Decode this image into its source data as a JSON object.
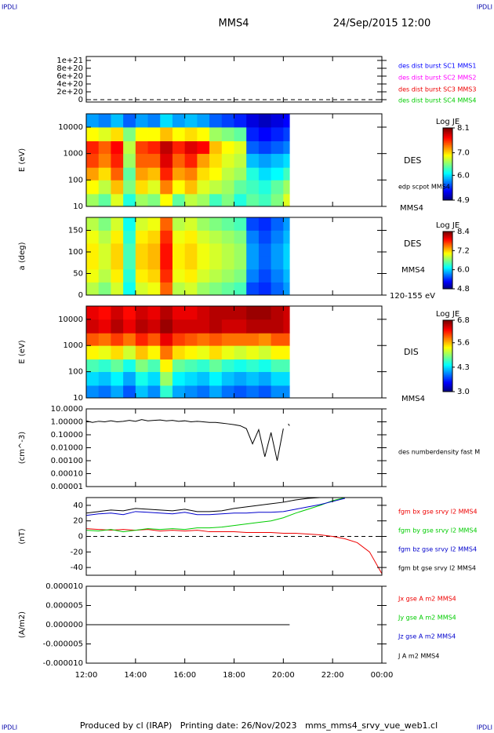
{
  "header": {
    "title": "MMS4",
    "date": "24/Sep/2015 12:00",
    "corners": [
      "IPDLI",
      "IPDLI",
      "IPDLI",
      "IPDLI"
    ]
  },
  "footer": "Produced by cl (IRAP)   Printing date: 26/Nov/2023   mms_mms4_srvy_vue_web1.cl",
  "time_axis": {
    "xlim": [
      12,
      24
    ],
    "xticks": [
      {
        "value": 12,
        "label": "12:00"
      },
      {
        "value": 14,
        "label": "14:00"
      },
      {
        "value": 16,
        "label": "16:00"
      },
      {
        "value": 18,
        "label": "18:00"
      },
      {
        "value": 20,
        "label": "20:00"
      },
      {
        "value": 22,
        "label": "22:00"
      },
      {
        "value": 24,
        "label": "00:00"
      }
    ]
  },
  "chart_data": [
    {
      "type": "line",
      "ylim": [
        -60000000000000000000,
        1100000000000000000000
      ],
      "yticks": [
        {
          "value": 0,
          "label": "0"
        },
        {
          "value": 200000000000000000000,
          "label": "2e+20"
        },
        {
          "value": 400000000000000000000,
          "label": "4e+20"
        },
        {
          "value": 600000000000000000000,
          "label": "6e+20"
        },
        {
          "value": 800000000000000000000,
          "label": "8e+20"
        },
        {
          "value": 1000000000000000000000,
          "label": "1e+21"
        }
      ],
      "zero_line": true,
      "x": [],
      "series": [],
      "legend": [
        {
          "name": "des dist burst SC1 MMS1",
          "color": "#0000ff"
        },
        {
          "name": "des dist burst SC2 MMS2",
          "color": "#ff00ff"
        },
        {
          "name": "des dist burst SC3 MMS3",
          "color": "#ee0000"
        },
        {
          "name": "des dist burst SC4 MMS4",
          "color": "#00cc00"
        }
      ]
    },
    {
      "type": "heatmap",
      "ylabel": "E (eV)",
      "log": true,
      "ylim": [
        10,
        32000
      ],
      "yticks": [
        10,
        100,
        1000,
        10000
      ],
      "xbins": [
        12,
        12.5,
        13,
        13.5,
        14,
        14.5,
        15,
        15.5,
        16,
        16.5,
        17,
        17.5,
        18,
        18.5,
        19,
        19.5,
        20,
        20.25
      ],
      "ybins": [
        10,
        30,
        100,
        300,
        1000,
        3000,
        10000,
        32000
      ],
      "z": [
        [
          6.6,
          6.4,
          6.8,
          6.2,
          6.6,
          6.5,
          6.9,
          6.4,
          6.7,
          6.6,
          6.3,
          6.5,
          6.2,
          6.4,
          6.3,
          6.5,
          6.8
        ],
        [
          6.9,
          6.7,
          7.1,
          6.5,
          7.0,
          6.8,
          7.3,
          6.9,
          7.1,
          6.8,
          6.7,
          6.6,
          6.4,
          6.3,
          6.2,
          6.4,
          6.6
        ],
        [
          7.2,
          7.0,
          7.4,
          6.4,
          7.2,
          7.1,
          7.6,
          7.2,
          7.3,
          7.0,
          6.9,
          6.7,
          6.6,
          6.2,
          6.0,
          6.1,
          6.3
        ],
        [
          7.5,
          7.3,
          7.6,
          6.6,
          7.4,
          7.4,
          7.8,
          7.4,
          7.6,
          7.2,
          7.0,
          6.8,
          6.7,
          5.9,
          5.8,
          5.9,
          6.0
        ],
        [
          7.6,
          7.4,
          7.7,
          6.7,
          7.5,
          7.6,
          7.9,
          7.6,
          7.8,
          7.7,
          7.1,
          6.9,
          6.8,
          5.6,
          5.5,
          5.6,
          5.7
        ],
        [
          6.9,
          6.8,
          7.0,
          6.5,
          6.9,
          6.9,
          7.1,
          6.9,
          7.0,
          6.9,
          6.6,
          6.5,
          6.4,
          5.4,
          5.3,
          5.4,
          5.5
        ],
        [
          5.8,
          5.7,
          5.9,
          5.6,
          5.8,
          5.7,
          6.0,
          5.8,
          5.9,
          5.8,
          5.6,
          5.5,
          5.4,
          5.2,
          5.1,
          5.2,
          5.3
        ]
      ],
      "colorbar": {
        "title": "Log JE",
        "lim": [
          4.9,
          8.1
        ],
        "ticks": [
          8.1,
          7.0,
          6.0,
          4.9
        ],
        "tick_labels": [
          "8.1",
          "7.0",
          "6.0",
          "4.9"
        ]
      },
      "labels": [
        "DES",
        "edp scpot MMS4",
        "MMS4"
      ]
    },
    {
      "type": "heatmap",
      "ylabel": "a (deg)",
      "log": false,
      "ylim": [
        0,
        180
      ],
      "yticks": [
        0,
        50,
        100,
        150
      ],
      "xbins": [
        12,
        12.5,
        13,
        13.5,
        14,
        14.5,
        15,
        15.5,
        16,
        16.5,
        17,
        17.5,
        18,
        18.5,
        19,
        19.5,
        20,
        20.25
      ],
      "ybins": [
        0,
        30,
        60,
        90,
        120,
        150,
        180
      ],
      "z": [
        [
          6.8,
          6.6,
          6.9,
          6.2,
          6.9,
          7.0,
          7.6,
          6.8,
          6.9,
          6.7,
          6.6,
          6.5,
          6.4,
          5.5,
          5.4,
          5.6,
          5.8
        ],
        [
          7.0,
          6.8,
          7.1,
          6.3,
          7.1,
          7.2,
          7.8,
          7.0,
          7.1,
          6.9,
          6.8,
          6.7,
          6.6,
          5.7,
          5.5,
          5.7,
          5.9
        ],
        [
          7.1,
          6.9,
          7.2,
          6.4,
          7.2,
          7.3,
          7.9,
          7.1,
          7.2,
          7.0,
          6.9,
          6.8,
          6.7,
          5.8,
          5.6,
          5.8,
          6.0
        ],
        [
          7.1,
          6.9,
          7.2,
          6.4,
          7.2,
          7.3,
          7.9,
          7.1,
          7.2,
          7.0,
          6.9,
          6.8,
          6.7,
          5.8,
          5.6,
          5.8,
          6.0
        ],
        [
          7.0,
          6.8,
          7.1,
          6.3,
          7.1,
          7.2,
          7.8,
          7.0,
          7.1,
          6.9,
          6.8,
          6.7,
          6.6,
          5.7,
          5.5,
          5.7,
          5.9
        ],
        [
          6.8,
          6.6,
          6.9,
          6.2,
          6.9,
          7.0,
          7.6,
          6.8,
          6.9,
          6.7,
          6.6,
          6.5,
          6.4,
          5.5,
          5.4,
          5.6,
          5.8
        ]
      ],
      "colorbar": {
        "title": "Log JE",
        "lim": [
          4.8,
          8.4
        ],
        "ticks": [
          8.4,
          7.2,
          6.0,
          4.8
        ],
        "tick_labels": [
          "8.4",
          "7.2",
          "6.0",
          "4.8"
        ]
      },
      "labels": [
        "DES",
        "MMS4",
        "120-155 eV"
      ]
    },
    {
      "type": "heatmap",
      "ylabel": "E (eV)",
      "log": true,
      "ylim": [
        10,
        32000
      ],
      "yticks": [
        10,
        100,
        1000,
        10000
      ],
      "xbins": [
        12,
        12.5,
        13,
        13.5,
        14,
        14.5,
        15,
        15.5,
        16,
        16.5,
        17,
        17.5,
        18,
        18.5,
        19,
        19.5,
        20,
        20.25
      ],
      "ybins": [
        10,
        30,
        100,
        300,
        1000,
        3000,
        10000,
        32000
      ],
      "z": [
        [
          4.0,
          3.9,
          4.1,
          3.8,
          4.2,
          4.0,
          4.6,
          4.1,
          4.0,
          3.9,
          4.1,
          3.9,
          3.8,
          3.9,
          3.8,
          4.0,
          4.0
        ],
        [
          4.3,
          4.2,
          4.4,
          4.1,
          4.5,
          4.3,
          5.0,
          4.4,
          4.3,
          4.2,
          4.4,
          4.2,
          4.1,
          4.2,
          4.1,
          4.3,
          4.3
        ],
        [
          4.7,
          4.6,
          4.8,
          4.5,
          4.9,
          4.7,
          5.4,
          4.8,
          4.7,
          4.6,
          4.8,
          4.6,
          4.5,
          4.6,
          4.5,
          4.7,
          4.7
        ],
        [
          5.4,
          5.3,
          5.5,
          5.2,
          5.6,
          5.4,
          5.9,
          5.5,
          5.4,
          5.3,
          5.5,
          5.3,
          5.2,
          5.3,
          5.2,
          5.4,
          5.4
        ],
        [
          6.0,
          5.9,
          6.1,
          5.9,
          6.2,
          6.0,
          6.4,
          6.1,
          6.0,
          5.9,
          6.0,
          5.9,
          5.9,
          5.9,
          5.8,
          6.0,
          6.0
        ],
        [
          6.5,
          6.4,
          6.6,
          6.4,
          6.6,
          6.5,
          6.7,
          6.5,
          6.5,
          6.5,
          6.6,
          6.5,
          6.5,
          6.6,
          6.6,
          6.6,
          6.5
        ],
        [
          6.4,
          6.3,
          6.5,
          6.3,
          6.5,
          6.4,
          6.6,
          6.4,
          6.4,
          6.5,
          6.6,
          6.6,
          6.6,
          6.7,
          6.7,
          6.6,
          6.5
        ]
      ],
      "colorbar": {
        "title": "Log JE",
        "lim": [
          3.0,
          6.8
        ],
        "ticks": [
          6.8,
          5.6,
          4.3,
          3.0
        ],
        "tick_labels": [
          "6.8",
          "5.6",
          "4.3",
          "3.0"
        ]
      },
      "labels": [
        "DIS",
        "MMS4"
      ]
    },
    {
      "type": "line",
      "ylabel": "(cm^-3)",
      "log": true,
      "ylim": [
        1e-05,
        10
      ],
      "yticks": [
        {
          "value": 10,
          "label": "10.0000"
        },
        {
          "value": 1,
          "label": "1.00000"
        },
        {
          "value": 0.1,
          "label": "0.10000"
        },
        {
          "value": 0.01,
          "label": "0.01000"
        },
        {
          "value": 0.001,
          "label": "0.00100"
        },
        {
          "value": 0.0001,
          "label": "0.00010"
        },
        {
          "value": 1e-05,
          "label": "0.00001"
        }
      ],
      "x": [
        12,
        12.25,
        12.5,
        12.75,
        13,
        13.25,
        13.5,
        13.75,
        14,
        14.25,
        14.5,
        14.75,
        15,
        15.25,
        15.5,
        15.75,
        16,
        16.25,
        16.5,
        16.75,
        17,
        17.25,
        17.5,
        17.75,
        18,
        18.25,
        18.5,
        18.75,
        19,
        19.25,
        19.5,
        19.75,
        20,
        20.1,
        20.2,
        20.25
      ],
      "series": [
        {
          "name": "des numberdensity fast M",
          "color": "#000000",
          "values": [
            1.2,
            0.9,
            1.1,
            1.0,
            1.2,
            1.0,
            1.1,
            1.3,
            1.1,
            1.5,
            1.2,
            1.3,
            1.4,
            1.2,
            1.3,
            1.1,
            1.2,
            1.0,
            1.1,
            1.0,
            0.9,
            0.9,
            0.8,
            0.7,
            0.6,
            0.5,
            0.3,
            0.02,
            0.25,
            0.002,
            0.15,
            0.001,
            0.3,
            null,
            0.7,
            0.5
          ]
        }
      ]
    },
    {
      "type": "line",
      "ylabel": "(nT)",
      "log": false,
      "ylim": [
        -50,
        50
      ],
      "yticks": [
        -40,
        -20,
        0,
        20,
        40
      ],
      "zero_line": true,
      "x": [
        12,
        12.5,
        13,
        13.5,
        14,
        14.5,
        15,
        15.5,
        16,
        16.5,
        17,
        17.5,
        18,
        18.5,
        19,
        19.5,
        20,
        20.5,
        21,
        21.5,
        22,
        22.5,
        23,
        23.5,
        24
      ],
      "series": [
        {
          "name": "fgm bx gse srvy l2 MMS4",
          "color": "#ee0000",
          "values": [
            10,
            9,
            8,
            9,
            8,
            9,
            7,
            8,
            7,
            8,
            6,
            6,
            6,
            5,
            5,
            5,
            4,
            4,
            3,
            2,
            0,
            -3,
            -8,
            -20,
            -48
          ]
        },
        {
          "name": "fgm by gse srvy l2 MMS4",
          "color": "#00cc00",
          "values": [
            8,
            7,
            9,
            6,
            8,
            10,
            9,
            10,
            9,
            11,
            11,
            12,
            14,
            16,
            18,
            20,
            24,
            30,
            35,
            40,
            46,
            50,
            null,
            null,
            null
          ]
        },
        {
          "name": "fgm bz gse srvy l2 MMS4",
          "color": "#0000cc",
          "values": [
            27,
            29,
            30,
            28,
            32,
            31,
            30,
            29,
            31,
            28,
            28,
            29,
            30,
            30,
            31,
            31,
            32,
            35,
            38,
            41,
            45,
            49,
            null,
            null,
            null
          ]
        },
        {
          "name": "fgm bt gse srvy l2 MMS4",
          "color": "#000000",
          "values": [
            30,
            32,
            34,
            33,
            36,
            35,
            34,
            33,
            35,
            32,
            32,
            33,
            36,
            38,
            40,
            42,
            44,
            47,
            49,
            50,
            null,
            null,
            null,
            null,
            null
          ]
        }
      ]
    },
    {
      "type": "line",
      "ylabel": "(A/m2)",
      "log": false,
      "ylim": [
        -1e-05,
        1e-05
      ],
      "yticks": [
        {
          "value": 1e-05,
          "label": "0.000010"
        },
        {
          "value": 5e-06,
          "label": "0.000005"
        },
        {
          "value": 0,
          "label": "0.000000"
        },
        {
          "value": -5e-06,
          "label": "-0.000005"
        },
        {
          "value": -1e-05,
          "label": "-0.000010"
        }
      ],
      "x": [
        12,
        13,
        14,
        15,
        16,
        17,
        18,
        19,
        20,
        20.25
      ],
      "series": [
        {
          "name": "Jx gse A m2 MMS4",
          "color": "#ee0000",
          "values": [
            0,
            0,
            0,
            0,
            0,
            0,
            0,
            0,
            0,
            0
          ]
        },
        {
          "name": "Jy gse A m2 MMS4",
          "color": "#00cc00",
          "values": [
            0,
            0,
            0,
            0,
            0,
            0,
            0,
            0,
            0,
            0
          ]
        },
        {
          "name": "Jz gse A m2 MMS4",
          "color": "#0000cc",
          "values": [
            0,
            0,
            0,
            0,
            0,
            0,
            0,
            0,
            0,
            0
          ]
        },
        {
          "name": "J A m2 MMS4",
          "color": "#000000",
          "values": [
            0,
            0,
            0,
            0,
            0,
            0,
            0,
            0,
            0,
            0
          ]
        }
      ]
    }
  ]
}
